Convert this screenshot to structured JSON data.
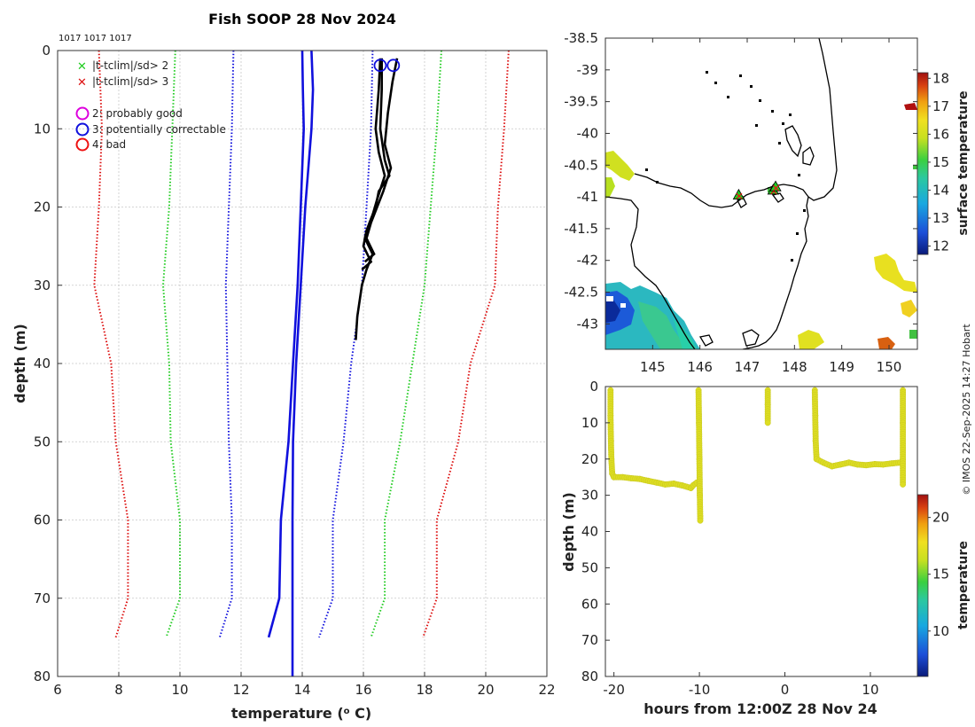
{
  "page": {
    "title": "Fish SOOP 28 Nov 2024",
    "ids_label": "1017 1017 1017",
    "copyright": "© IMOS 22-Sep-2025 14:27 Hobart"
  },
  "colors": {
    "sd2": "#22cc22",
    "sd3": "#dd1111",
    "clim": "#1010dd",
    "profile": "#000000",
    "qc2": "#dd00dd",
    "qc3": "#1010dd",
    "qc4": "#ee1111",
    "coast": "#000000",
    "track": "#dddd22"
  },
  "chart_data": [
    {
      "id": "profile",
      "type": "line",
      "title": "Fish SOOP 28 Nov 2024",
      "xlabel": "temperature (",
      "xlabel_sup": "o",
      "xlabel_end": " C)",
      "ylabel": "depth (m)",
      "xlim": [
        6,
        22
      ],
      "ylim": [
        80,
        0
      ],
      "xticks": [
        6,
        8,
        10,
        12,
        14,
        16,
        18,
        20,
        22
      ],
      "yticks": [
        0,
        10,
        20,
        30,
        40,
        50,
        60,
        70,
        80
      ],
      "grid": true,
      "legend": [
        {
          "marker": "x",
          "color_key": "sd2",
          "label": "|t-tclim|/sd> 2"
        },
        {
          "marker": "x",
          "color_key": "sd3",
          "label": "|t-tclim|/sd> 3"
        },
        {
          "marker": "o",
          "color_key": "qc2",
          "label": "2: probably good"
        },
        {
          "marker": "o",
          "color_key": "qc3",
          "label": "3: potentially correctable"
        },
        {
          "marker": "o",
          "color_key": "qc4",
          "label": "4: bad"
        }
      ],
      "series": [
        {
          "name": "clim -3sd",
          "style": "dotted",
          "color_key": "sd3",
          "depth": [
            0,
            10,
            20,
            30,
            40,
            50,
            60,
            70,
            75
          ],
          "temp": [
            7.35,
            7.45,
            7.35,
            7.2,
            7.75,
            7.9,
            8.3,
            8.3,
            7.9
          ]
        },
        {
          "name": "clim -2sd",
          "style": "dotted",
          "color_key": "sd2",
          "depth": [
            0,
            10,
            20,
            30,
            40,
            50,
            60,
            70,
            75
          ],
          "temp": [
            9.85,
            9.75,
            9.65,
            9.45,
            9.65,
            9.7,
            10.0,
            10.0,
            9.55
          ]
        },
        {
          "name": "clim -1sd",
          "style": "dotted",
          "color_key": "clim",
          "depth": [
            0,
            10,
            20,
            30,
            40,
            50,
            60,
            70,
            75
          ],
          "temp": [
            11.75,
            11.7,
            11.6,
            11.5,
            11.55,
            11.6,
            11.7,
            11.7,
            11.3
          ]
        },
        {
          "name": "clim mean",
          "style": "solid",
          "color_key": "clim",
          "depth": [
            0,
            5,
            10,
            20,
            30,
            40,
            50,
            60,
            70,
            75
          ],
          "temp": [
            14.0,
            14.02,
            14.05,
            13.95,
            13.85,
            13.7,
            13.55,
            13.3,
            13.25,
            12.9
          ]
        },
        {
          "name": "clim mean (alt)",
          "style": "solid",
          "color_key": "clim",
          "depth": [
            0,
            5,
            10,
            20,
            30,
            40,
            50,
            60,
            70,
            80
          ],
          "temp": [
            14.3,
            14.35,
            14.3,
            14.1,
            13.95,
            13.8,
            13.7,
            13.68,
            13.68,
            13.68
          ]
        },
        {
          "name": "clim +1sd",
          "style": "dotted",
          "color_key": "clim",
          "depth": [
            0,
            10,
            20,
            30,
            40,
            50,
            60,
            70,
            75
          ],
          "temp": [
            16.3,
            16.25,
            16.1,
            15.95,
            15.6,
            15.35,
            15.0,
            15.0,
            14.55
          ]
        },
        {
          "name": "clim +2sd",
          "style": "dotted",
          "color_key": "sd2",
          "depth": [
            0,
            10,
            20,
            30,
            40,
            50,
            60,
            70,
            75
          ],
          "temp": [
            18.55,
            18.4,
            18.2,
            18.0,
            17.6,
            17.2,
            16.7,
            16.7,
            16.25
          ]
        },
        {
          "name": "clim +3sd",
          "style": "dotted",
          "color_key": "sd3",
          "depth": [
            0,
            10,
            20,
            30,
            40,
            50,
            60,
            70,
            75
          ],
          "temp": [
            20.75,
            20.6,
            20.4,
            20.3,
            19.5,
            19.1,
            18.4,
            18.4,
            17.95
          ]
        },
        {
          "name": "profile 1",
          "style": "solid",
          "color_key": "profile",
          "depth": [
            1,
            5,
            10,
            14,
            16,
            18,
            20,
            22,
            24,
            26,
            28,
            30,
            34,
            37
          ],
          "temp": [
            16.6,
            16.6,
            16.55,
            16.7,
            16.85,
            16.5,
            16.4,
            16.2,
            16.05,
            16.3,
            16.1,
            15.95,
            15.8,
            15.75
          ]
        },
        {
          "name": "profile 2",
          "style": "solid",
          "color_key": "profile",
          "depth": [
            1,
            5,
            10,
            13,
            16,
            19,
            21,
            23,
            25,
            27,
            28
          ],
          "temp": [
            16.55,
            16.5,
            16.4,
            16.5,
            16.7,
            16.45,
            16.3,
            16.1,
            16.0,
            16.25,
            15.95
          ]
        },
        {
          "name": "profile 3",
          "style": "solid",
          "color_key": "profile",
          "depth": [
            1,
            4,
            8,
            12,
            15,
            18,
            20,
            22,
            24,
            26,
            27
          ],
          "temp": [
            17.1,
            16.95,
            16.8,
            16.7,
            16.9,
            16.65,
            16.45,
            16.25,
            16.1,
            16.35,
            16.05
          ]
        }
      ],
      "qc_points": [
        {
          "depth": 1,
          "temp": 16.55,
          "flag": 3
        },
        {
          "depth": 1,
          "temp": 16.98,
          "flag": 3
        }
      ]
    },
    {
      "id": "map",
      "type": "heatmap",
      "xlim": [
        144,
        150.6
      ],
      "ylim": [
        -43.4,
        -38.5
      ],
      "xticks": [
        145,
        146,
        147,
        148,
        149,
        150
      ],
      "yticks": [
        -38.5,
        -39,
        -39.5,
        -40,
        -40.5,
        -41,
        -41.5,
        -42,
        -42.5,
        -43
      ],
      "ytick_labels": [
        "-38.5",
        "-39",
        "-39.5",
        "-40",
        "-40.5",
        "-41",
        "-41.5",
        "-42",
        "-42.5",
        "-43"
      ],
      "colorbar": {
        "label": "surface temperature",
        "range": [
          11.7,
          18.2
        ],
        "ticks": [
          12,
          13,
          14,
          15,
          16,
          17,
          18
        ]
      },
      "drop_locations": [
        {
          "lon": 146.82,
          "lat": -40.98
        },
        {
          "lon": 147.55,
          "lat": -40.9
        },
        {
          "lon": 147.6,
          "lat": -40.85
        }
      ]
    },
    {
      "id": "timeseries",
      "type": "scatter",
      "xlabel": "hours from 12:00Z 28 Nov 24",
      "ylabel": "depth (m)",
      "xlim": [
        -21,
        15.5
      ],
      "ylim": [
        80,
        0
      ],
      "xticks": [
        -20,
        -10,
        0,
        10
      ],
      "yticks": [
        0,
        10,
        20,
        30,
        40,
        50,
        60,
        70,
        80
      ],
      "colorbar": {
        "label": "temperature",
        "range": [
          6,
          22
        ],
        "ticks": [
          10,
          15,
          20
        ]
      },
      "segments": [
        {
          "x": [
            -20.4,
            -20.4,
            -20.35,
            -20.3,
            -20.2,
            -20.0
          ],
          "y": [
            1,
            8,
            15,
            20,
            24,
            25
          ]
        },
        {
          "x": [
            -20.0,
            -19.0,
            -18.0,
            -17.0,
            -16.0,
            -15.0,
            -14.0,
            -13.0,
            -12.0,
            -11.0,
            -10.7,
            -10.3,
            -10.0
          ],
          "y": [
            25,
            25,
            25.3,
            25.5,
            26,
            26.5,
            27,
            26.8,
            27.3,
            28,
            27.2,
            26.5,
            26.5
          ]
        },
        {
          "x": [
            -10.1,
            -10.05,
            -10.0,
            -9.95,
            -9.9
          ],
          "y": [
            1,
            10,
            20,
            30,
            37
          ]
        },
        {
          "x": [
            -2.0,
            -2.0,
            -2.0
          ],
          "y": [
            1,
            5,
            10
          ]
        },
        {
          "x": [
            3.5,
            3.55,
            3.6,
            3.7
          ],
          "y": [
            1,
            8,
            15,
            20
          ]
        },
        {
          "x": [
            3.7,
            4.5,
            5.5,
            6.5,
            7.5,
            8.5,
            9.5,
            10.5,
            11.5,
            12.5,
            13.5
          ],
          "y": [
            20,
            21,
            22,
            21.5,
            21,
            21.5,
            21.7,
            21.4,
            21.5,
            21.2,
            21
          ]
        },
        {
          "x": [
            13.8,
            13.8,
            13.8,
            13.8
          ],
          "y": [
            1,
            10,
            20,
            27
          ]
        }
      ]
    }
  ]
}
